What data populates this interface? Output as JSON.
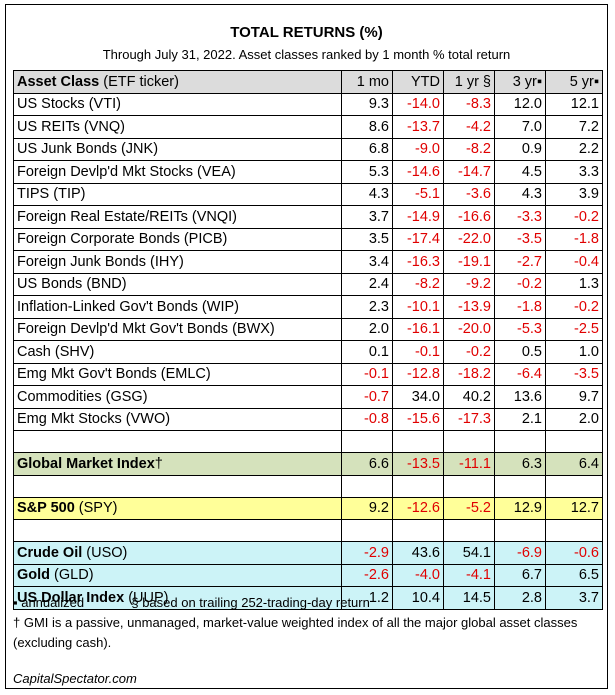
{
  "chart_data": {
    "type": "table",
    "title": "TOTAL RETURNS (%)",
    "subtitle": "Through July 31, 2022. Asset classes ranked by 1 month % total return",
    "header": {
      "asset_bold": "Asset Class",
      "asset_rest": " (ETF ticker)",
      "cols": [
        "1 mo",
        "YTD",
        "1 yr §",
        "3 yr▪",
        "5 yr▪"
      ]
    },
    "rows": [
      {
        "name": "US Stocks (VTI)",
        "values": [
          "9.3",
          "-14.0",
          "-8.3",
          "12.0",
          "12.1"
        ]
      },
      {
        "name": "US REITs (VNQ)",
        "values": [
          "8.6",
          "-13.7",
          "-4.2",
          "7.0",
          "7.2"
        ]
      },
      {
        "name": "US Junk Bonds (JNK)",
        "values": [
          "6.8",
          "-9.0",
          "-8.2",
          "0.9",
          "2.2"
        ]
      },
      {
        "name": "Foreign Devlp'd Mkt Stocks (VEA)",
        "values": [
          "5.3",
          "-14.6",
          "-14.7",
          "4.5",
          "3.3"
        ]
      },
      {
        "name": "TIPS (TIP)",
        "values": [
          "4.3",
          "-5.1",
          "-3.6",
          "4.3",
          "3.9"
        ]
      },
      {
        "name": "Foreign Real Estate/REITs (VNQI)",
        "values": [
          "3.7",
          "-14.9",
          "-16.6",
          "-3.3",
          "-0.2"
        ]
      },
      {
        "name": "Foreign Corporate Bonds (PICB)",
        "values": [
          "3.5",
          "-17.4",
          "-22.0",
          "-3.5",
          "-1.8"
        ]
      },
      {
        "name": "Foreign Junk Bonds (IHY)",
        "values": [
          "3.4",
          "-16.3",
          "-19.1",
          "-2.7",
          "-0.4"
        ]
      },
      {
        "name": "US Bonds (BND)",
        "values": [
          "2.4",
          "-8.2",
          "-9.2",
          "-0.2",
          "1.3"
        ]
      },
      {
        "name": "Inflation-Linked Gov't Bonds (WIP)",
        "values": [
          "2.3",
          "-10.1",
          "-13.9",
          "-1.8",
          "-0.2"
        ]
      },
      {
        "name": "Foreign Devlp'd Mkt Gov't Bonds (BWX)",
        "values": [
          "2.0",
          "-16.1",
          "-20.0",
          "-5.3",
          "-2.5"
        ]
      },
      {
        "name": "Cash (SHV)",
        "values": [
          "0.1",
          "-0.1",
          "-0.2",
          "0.5",
          "1.0"
        ]
      },
      {
        "name": "Emg Mkt Gov't Bonds (EMLC)",
        "values": [
          "-0.1",
          "-12.8",
          "-18.2",
          "-6.4",
          "-3.5"
        ]
      },
      {
        "name": "Commodities (GSG)",
        "values": [
          "-0.7",
          "34.0",
          "40.2",
          "13.6",
          "9.7"
        ]
      },
      {
        "name": "Emg Mkt Stocks (VWO)",
        "values": [
          "-0.8",
          "-15.6",
          "-17.3",
          "2.1",
          "2.0"
        ]
      }
    ],
    "gmi": {
      "bold": "Global Market Index",
      "rest": "†",
      "values": [
        "6.6",
        "-13.5",
        "-11.1",
        "6.3",
        "6.4"
      ]
    },
    "spy": {
      "bold": "S&P 500",
      "rest": " (SPY)",
      "values": [
        "9.2",
        "-12.6",
        "-5.2",
        "12.9",
        "12.7"
      ]
    },
    "others": [
      {
        "bold": "Crude Oil",
        "rest": " (USO)",
        "values": [
          "-2.9",
          "43.6",
          "54.1",
          "-6.9",
          "-0.6"
        ]
      },
      {
        "bold": "Gold",
        "rest": " (GLD)",
        "values": [
          "-2.6",
          "-4.0",
          "-4.1",
          "6.7",
          "6.5"
        ]
      },
      {
        "bold": "US Dollar Index",
        "rest": " (UUP)",
        "values": [
          "1.2",
          "10.4",
          "14.5",
          "2.8",
          "3.7"
        ]
      }
    ],
    "colors": {
      "negative": "#e00000",
      "header_bg": "#dcdcdc",
      "gmi_bg": "#d5e2bc",
      "spy_bg": "#ffff99",
      "commodity_bg": "#ccf3f7"
    }
  },
  "notes": {
    "line1_a": "▪ annualized",
    "line1_b": "§ based on trailing 252-trading-day return",
    "line2": "† GMI is a passive, unmanaged, market-value weighted index of all the major global asset classes (excluding cash)."
  },
  "footer": "CapitalSpectator.com"
}
